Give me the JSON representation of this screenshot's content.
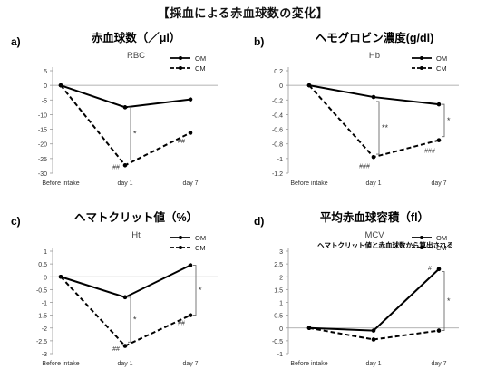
{
  "page_title": "【採血による赤血球数の変化】",
  "colors": {
    "line": "#000000",
    "axis": "#9a9a9a",
    "grid": "#d0d0d0",
    "bracket": "#6a6a6a"
  },
  "chart_data": [
    {
      "type": "line",
      "panel_label": "a)",
      "heading": "赤血球数（／μl）",
      "title": "RBC",
      "categories": [
        "Before intake",
        "day 1",
        "day 7"
      ],
      "ylim": [
        -30,
        5
      ],
      "yticks": [
        "5",
        "0",
        "-5",
        "-10",
        "-15",
        "-20",
        "-25",
        "-30"
      ],
      "grid": false,
      "legend": "top-right",
      "series": [
        {
          "name": "OM",
          "values": [
            0,
            -7.5,
            -4.8
          ],
          "style": "solid"
        },
        {
          "name": "CM",
          "values": [
            0,
            -27.3,
            -16.2
          ],
          "style": "dashed"
        }
      ],
      "annotations": [
        {
          "text": "*",
          "kind": "bracket",
          "between": [
            [
              1,
              -7.5
            ],
            [
              1,
              -25.5
            ]
          ]
        },
        {
          "text": "##",
          "kind": "label",
          "at": [
            1,
            -27.3
          ]
        },
        {
          "text": "##",
          "kind": "label",
          "at": [
            2,
            -18.5
          ]
        }
      ]
    },
    {
      "type": "line",
      "panel_label": "b)",
      "heading": "ヘモグロビン濃度(g/dl)",
      "title": "Hb",
      "categories": [
        "Before intake",
        "day 1",
        "day 7"
      ],
      "ylim": [
        -1.2,
        0.2
      ],
      "yticks": [
        "0.2",
        "0",
        "-0.2",
        "-0.4",
        "-0.6",
        "-0.8",
        "-1",
        "-1.2"
      ],
      "grid": false,
      "legend": "top-right",
      "series": [
        {
          "name": "OM",
          "values": [
            0,
            -0.16,
            -0.26
          ],
          "style": "solid"
        },
        {
          "name": "CM",
          "values": [
            0,
            -0.98,
            -0.75
          ],
          "style": "dashed"
        }
      ],
      "annotations": [
        {
          "text": "**",
          "kind": "bracket",
          "between": [
            [
              1,
              -0.22
            ],
            [
              1,
              -0.94
            ]
          ]
        },
        {
          "text": "*",
          "kind": "bracket",
          "between": [
            [
              2,
              -0.26
            ],
            [
              2,
              -0.7
            ]
          ]
        },
        {
          "text": "###",
          "kind": "label",
          "at": [
            1,
            -1.08
          ]
        },
        {
          "text": "###",
          "kind": "label",
          "at": [
            2,
            -0.87
          ]
        }
      ]
    },
    {
      "type": "line",
      "panel_label": "c)",
      "heading": "ヘマトクリット値（%）",
      "title": "Ht",
      "categories": [
        "Before intake",
        "day 1",
        "day 7"
      ],
      "ylim": [
        -3,
        1
      ],
      "yticks": [
        "1",
        "0.5",
        "0",
        "-0.5",
        "-1",
        "-1.5",
        "-2",
        "-2.5",
        "-3"
      ],
      "grid": false,
      "legend": "top-right",
      "series": [
        {
          "name": "OM",
          "values": [
            0,
            -0.8,
            0.45
          ],
          "style": "solid"
        },
        {
          "name": "CM",
          "values": [
            0,
            -2.7,
            -1.5
          ],
          "style": "dashed"
        }
      ],
      "annotations": [
        {
          "text": "*",
          "kind": "bracket",
          "between": [
            [
              1,
              -0.8
            ],
            [
              1,
              -2.55
            ]
          ]
        },
        {
          "text": "*",
          "kind": "bracket",
          "between": [
            [
              2,
              0.45
            ],
            [
              2,
              -1.5
            ]
          ]
        },
        {
          "text": "##",
          "kind": "label",
          "at": [
            1,
            -2.75
          ]
        },
        {
          "text": "##",
          "kind": "label",
          "at": [
            2,
            -1.75
          ]
        }
      ]
    },
    {
      "type": "line",
      "panel_label": "d)",
      "heading": "平均赤血球容積（fl）",
      "title": "MCV",
      "subtitle": "ヘマトクリット値と赤血球数から算出される",
      "categories": [
        "Before intake",
        "day 1",
        "day 7"
      ],
      "ylim": [
        -1,
        3
      ],
      "yticks": [
        "3",
        "2.5",
        "2",
        "1.5",
        "1",
        "0.5",
        "0",
        "-0.5",
        "-1"
      ],
      "grid": false,
      "legend": "top-right",
      "series": [
        {
          "name": "OM",
          "values": [
            0,
            -0.1,
            2.3
          ],
          "style": "solid"
        },
        {
          "name": "CM",
          "values": [
            0,
            -0.45,
            -0.1
          ],
          "style": "dashed"
        }
      ],
      "annotations": [
        {
          "text": "#",
          "kind": "label",
          "at": [
            2,
            2.4
          ]
        },
        {
          "text": "*",
          "kind": "bracket",
          "between": [
            [
              2,
              2.2
            ],
            [
              2,
              -0.1
            ]
          ]
        }
      ]
    }
  ]
}
